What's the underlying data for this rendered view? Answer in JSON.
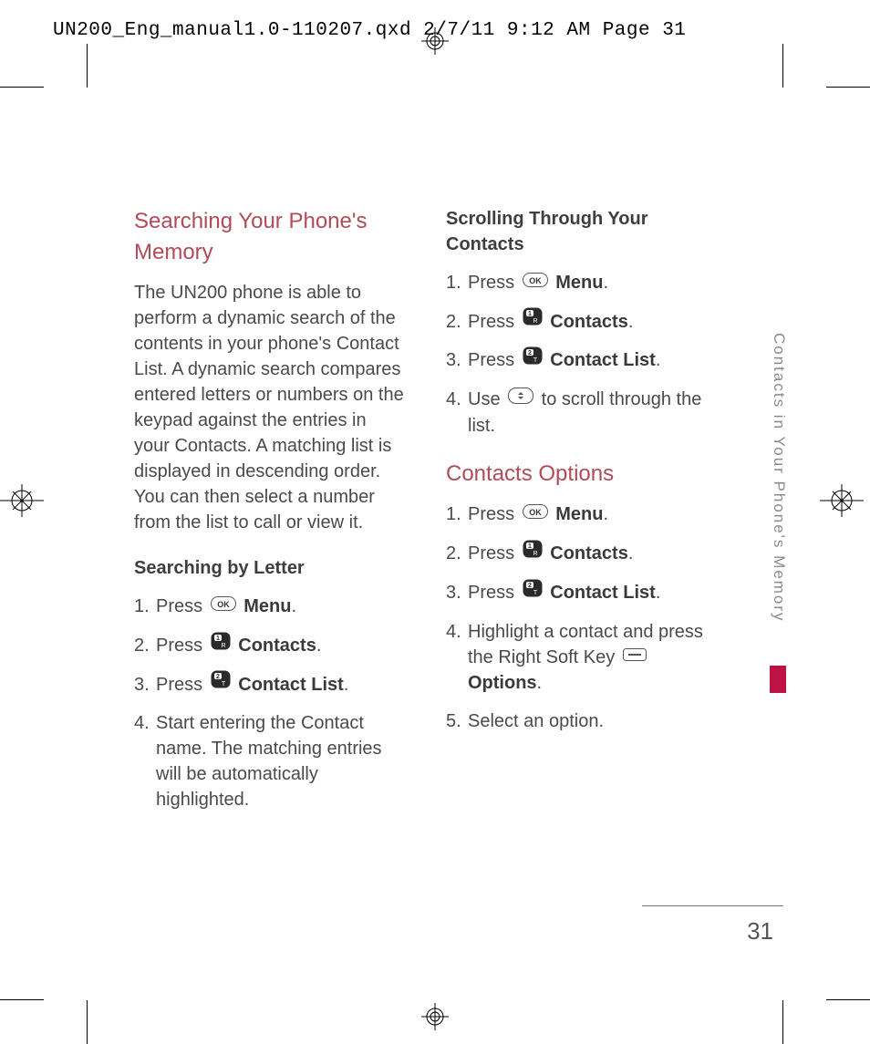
{
  "slug": "UN200_Eng_manual1.0-110207.qxd  2/7/11  9:12 AM  Page 31",
  "side_label": "Contacts in Your Phone's Memory",
  "page_number": "31",
  "colors": {
    "heading_red": "#b04b57",
    "body": "#4a4a4a",
    "bold": "#3a3a3a",
    "accent": "#bf1244",
    "side_label": "#8a8a8a",
    "slug": "#000000",
    "background": "#ffffff"
  },
  "left_column": {
    "heading": "Searching Your Phone's Memory",
    "paragraph": "The UN200 phone is able to perform a dynamic search of the contents in your phone's Contact List. A dynamic search compares entered letters or numbers on the keypad against the entries in your Contacts. A matching list is displayed in descending order. You can then select a number from the list to call or view it.",
    "subheading": "Searching by Letter",
    "steps": [
      {
        "n": "1.",
        "pre": "Press ",
        "icon": "ok",
        "post": " ",
        "bold": "Menu",
        "tail": "."
      },
      {
        "n": "2.",
        "pre": "Press ",
        "icon": "key1",
        "post": " ",
        "bold": "Contacts",
        "tail": "."
      },
      {
        "n": "3.",
        "pre": "Press ",
        "icon": "key2",
        "post": " ",
        "bold": "Contact List",
        "tail": "."
      },
      {
        "n": "4.",
        "pre": "Start entering the Contact name. The matching entries will be automatically highlighted.",
        "icon": null,
        "post": "",
        "bold": "",
        "tail": ""
      }
    ]
  },
  "right_column": {
    "subheading1": "Scrolling Through Your Contacts",
    "steps1": [
      {
        "n": "1.",
        "pre": "Press ",
        "icon": "ok",
        "post": " ",
        "bold": "Menu",
        "tail": "."
      },
      {
        "n": "2.",
        "pre": "Press ",
        "icon": "key1",
        "post": " ",
        "bold": "Contacts",
        "tail": "."
      },
      {
        "n": "3.",
        "pre": "Press ",
        "icon": "key2",
        "post": " ",
        "bold": "Contact List",
        "tail": "."
      },
      {
        "n": "4.",
        "pre": "Use ",
        "icon": "nav",
        "post": " to scroll through the list.",
        "bold": "",
        "tail": ""
      }
    ],
    "heading2": "Contacts Options",
    "steps2": [
      {
        "n": "1.",
        "pre": "Press ",
        "icon": "ok",
        "post": " ",
        "bold": "Menu",
        "tail": "."
      },
      {
        "n": "2.",
        "pre": "Press ",
        "icon": "key1",
        "post": " ",
        "bold": "Contacts",
        "tail": "."
      },
      {
        "n": "3.",
        "pre": "Press ",
        "icon": "key2",
        "post": " ",
        "bold": "Contact List",
        "tail": "."
      },
      {
        "n": "4.",
        "pre": "Highlight a contact and press the Right Soft Key ",
        "icon": "soft",
        "post": " ",
        "bold": "Options",
        "tail": "."
      },
      {
        "n": "5.",
        "pre": "Select an option.",
        "icon": null,
        "post": "",
        "bold": "",
        "tail": ""
      }
    ]
  },
  "icons": {
    "ok": "OK pill key",
    "key1": "1 key",
    "key2": "2 key",
    "nav": "up/down nav key",
    "soft": "right soft key"
  }
}
